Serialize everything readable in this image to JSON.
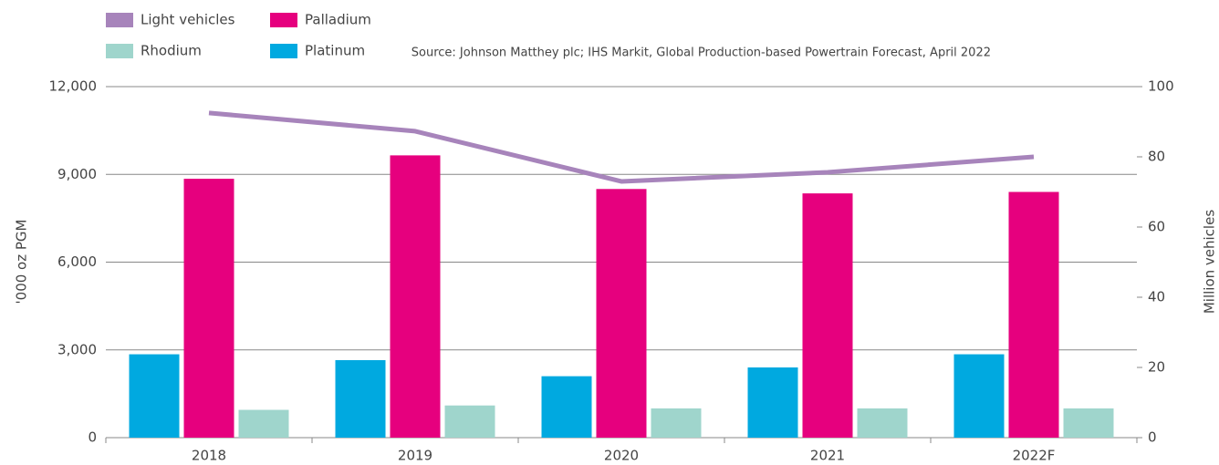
{
  "chart_data": {
    "type": "bar",
    "source": "Source: Johnson Matthey plc; IHS Markit, Global Production-based Powertrain Forecast, April 2022",
    "y_label": "'000 oz PGM",
    "y2_label": "Million vehicles",
    "categories": [
      "2018",
      "2019",
      "2020",
      "2021",
      "2022F"
    ],
    "series": [
      {
        "name": "Platinum",
        "color": "#00a9e0",
        "values": [
          2850,
          2650,
          2100,
          2400,
          2850
        ]
      },
      {
        "name": "Palladium",
        "color": "#e6007e",
        "values": [
          8850,
          9650,
          8500,
          8350,
          8400
        ]
      },
      {
        "name": "Rhodium",
        "color": "#9fd5cc",
        "values": [
          950,
          1100,
          1000,
          1000,
          1000
        ]
      },
      {
        "name": "Light vehicles",
        "color": "#a784bb",
        "type": "line",
        "axis": "y2",
        "values": [
          92.5,
          87.3,
          73,
          75.6,
          80
        ]
      }
    ],
    "ylim": [
      0,
      12000
    ],
    "yticks": [
      0,
      {
        "value": 3000,
        "label": "3,000"
      },
      {
        "value": 6000,
        "label": "6,000"
      },
      {
        "value": 9000,
        "label": "9,000"
      },
      {
        "value": 12000,
        "label": "12,000"
      }
    ],
    "y2lim": [
      0,
      100
    ],
    "y2ticks": [
      0,
      20,
      40,
      60,
      80,
      100
    ],
    "grid": true,
    "legend_order": [
      3,
      1,
      2,
      0
    ]
  }
}
